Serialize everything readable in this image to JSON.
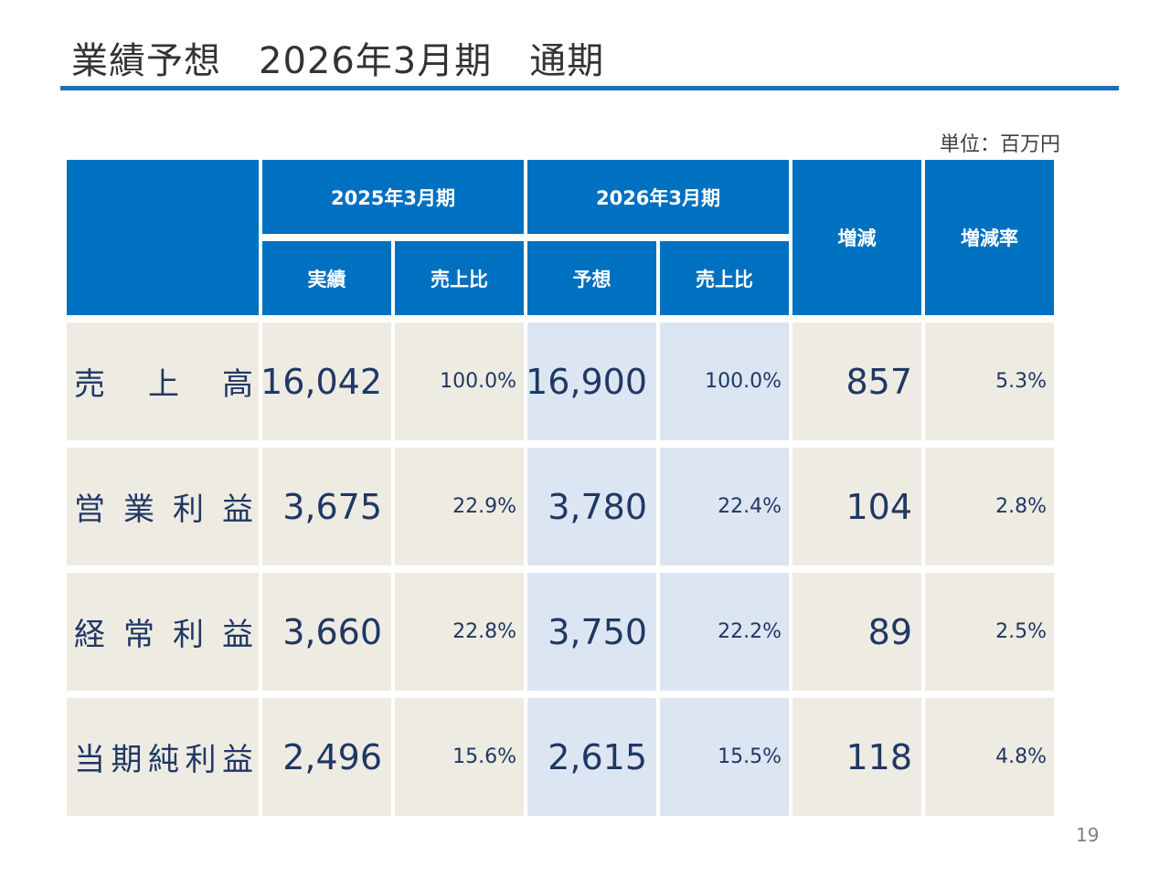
{
  "title": "業績予想　2026年3月期　通期",
  "unit": "単位：百万円",
  "page_number": "19",
  "table": {
    "headers": {
      "period_prev": "2025年3月期",
      "period_next": "2026年3月期",
      "actual": "実績",
      "sales_ratio_prev": "売上比",
      "forecast": "予想",
      "sales_ratio_next": "売上比",
      "change": "増減",
      "change_rate": "増減率"
    },
    "rows": [
      {
        "label_chars": [
          "売",
          "上",
          "高"
        ],
        "actual": "16,042",
        "ratio_prev": "100.0%",
        "forecast": "16,900",
        "ratio_next": "100.0%",
        "change": "857",
        "rate": "5.3%"
      },
      {
        "label_chars": [
          "営",
          "業",
          "利",
          "益"
        ],
        "actual": "3,675",
        "ratio_prev": "22.9%",
        "forecast": "3,780",
        "ratio_next": "22.4%",
        "change": "104",
        "rate": "2.8%"
      },
      {
        "label_chars": [
          "経",
          "常",
          "利",
          "益"
        ],
        "actual": "3,660",
        "ratio_prev": "22.8%",
        "forecast": "3,750",
        "ratio_next": "22.2%",
        "change": "89",
        "rate": "2.5%"
      },
      {
        "label_chars": [
          "当",
          "期",
          "純",
          "利",
          "益"
        ],
        "actual": "2,496",
        "ratio_prev": "15.6%",
        "forecast": "2,615",
        "ratio_next": "15.5%",
        "change": "118",
        "rate": "4.8%"
      }
    ]
  }
}
